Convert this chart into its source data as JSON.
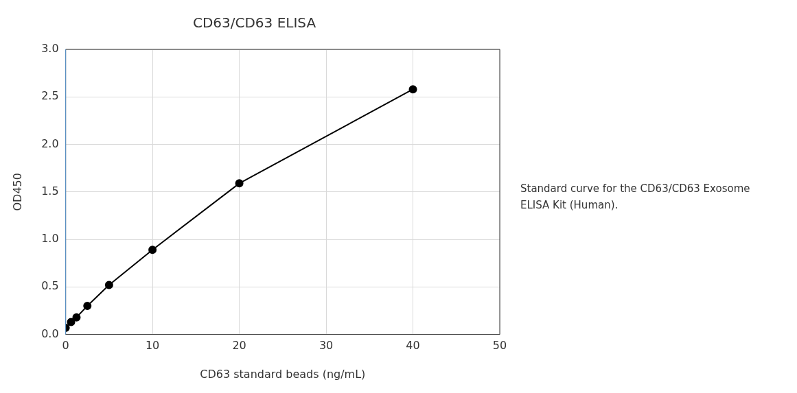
{
  "chart_data": {
    "type": "line",
    "title": "CD63/CD63 ELISA",
    "xlabel": "CD63 standard beads (ng/mL)",
    "ylabel": "OD450",
    "x": [
      0,
      0.625,
      1.25,
      2.5,
      5,
      10,
      20,
      40
    ],
    "series": [
      {
        "color": "#000000",
        "values": [
          0.07,
          0.13,
          0.18,
          0.3,
          0.52,
          0.89,
          1.59,
          2.58
        ]
      }
    ],
    "xlim": [
      0,
      50
    ],
    "xticks": [
      0,
      10,
      20,
      30,
      40,
      50
    ],
    "ylim": [
      0,
      3
    ],
    "yticks": [
      {
        "value": 0,
        "label": "0.0"
      },
      0.5,
      {
        "value": 1,
        "label": "1.0"
      },
      1.5,
      {
        "value": 2,
        "label": "2.0"
      },
      2.5,
      {
        "value": 3,
        "label": "3.0"
      }
    ],
    "grid": true,
    "marker": "circle",
    "line_style": "solid",
    "annotations": [
      "Standard curve for the CD63/CD63 Exosome ELISA Kit (Human)."
    ]
  }
}
